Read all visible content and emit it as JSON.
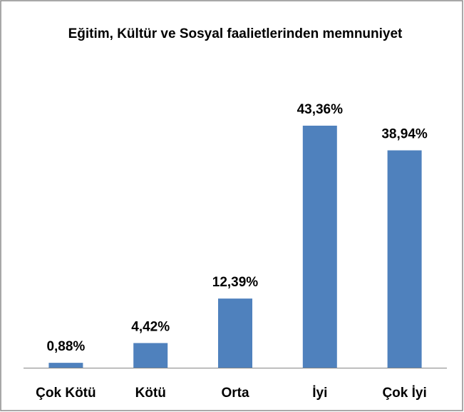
{
  "chart_data": {
    "type": "bar",
    "title": "Eğitim, Kültür ve Sosyal faalietlerinden memnuniyet",
    "categories": [
      "Çok Kötü",
      "Kötü",
      "Orta",
      "İyi",
      "Çok İyi"
    ],
    "values": [
      0.88,
      4.42,
      12.39,
      43.36,
      38.94
    ],
    "value_labels": [
      "0,88%",
      "4,42%",
      "12,39%",
      "43,36%",
      "38,94%"
    ],
    "color": "#4f81bd"
  }
}
